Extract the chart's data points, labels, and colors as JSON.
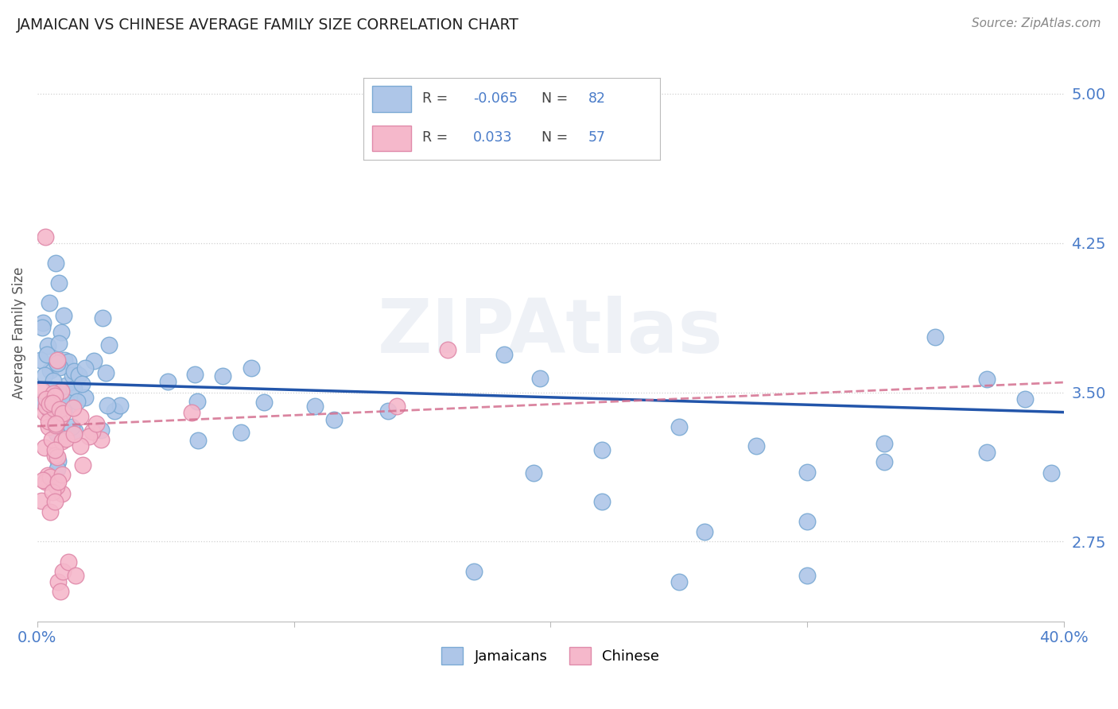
{
  "title": "JAMAICAN VS CHINESE AVERAGE FAMILY SIZE CORRELATION CHART",
  "source": "Source: ZipAtlas.com",
  "ylabel": "Average Family Size",
  "xlim": [
    0.0,
    0.4
  ],
  "ylim": [
    2.35,
    5.25
  ],
  "yticks": [
    2.75,
    3.5,
    4.25,
    5.0
  ],
  "ytick_labels": [
    "2.75",
    "3.50",
    "4.25",
    "5.00"
  ],
  "xtick_positions": [
    0.0,
    0.1,
    0.2,
    0.3,
    0.4
  ],
  "xtick_labels": [
    "0.0%",
    "",
    "",
    "",
    "40.0%"
  ],
  "ytick_color": "#4a7cc9",
  "grid_color": "#cccccc",
  "background_color": "#ffffff",
  "jamaican_N": 82,
  "chinese_N": 57,
  "jamaican_color": "#aec6e8",
  "jamaican_edge": "#7baad4",
  "chinese_color": "#f5b8cb",
  "chinese_edge": "#e08aaa",
  "trendline_jamaican_color": "#2255aa",
  "trendline_chinese_color": "#d47090",
  "legend_label_jamaican": "Jamaicans",
  "legend_label_chinese": "Chinese",
  "watermark": "ZIPAtlas"
}
